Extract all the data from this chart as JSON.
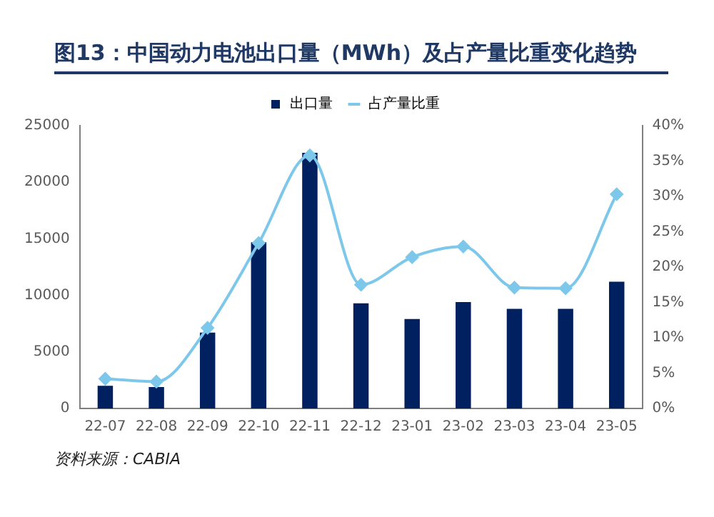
{
  "chart_data": {
    "type": "bar",
    "title": "图13：中国动力电池出口量（MWh）及占产量比重变化趋势",
    "categories": [
      "22-07",
      "22-08",
      "22-09",
      "22-10",
      "22-11",
      "22-12",
      "23-01",
      "23-02",
      "23-03",
      "23-04",
      "23-05"
    ],
    "series": [
      {
        "name": "出口量",
        "color": "#002060",
        "values": [
          2000,
          1900,
          6700,
          14700,
          22600,
          9300,
          7900,
          9400,
          8800,
          8800,
          11200
        ]
      },
      {
        "name": "占产量比重",
        "type": "line",
        "axis": "y2",
        "color": "#7dc8ea",
        "values": [
          4.2,
          3.8,
          11.4,
          23.4,
          35.8,
          17.5,
          21.4,
          22.9,
          17.1,
          17.0,
          30.3
        ]
      }
    ],
    "ylim": [
      0,
      25000
    ],
    "yticks": [
      0,
      5000,
      10000,
      15000,
      20000,
      25000
    ],
    "y2lim": [
      0,
      40
    ],
    "y2ticks": [
      {
        "value": 0,
        "label": "0%"
      },
      {
        "value": 5,
        "label": "5%"
      },
      {
        "value": 10,
        "label": "10%"
      },
      {
        "value": 15,
        "label": "15%"
      },
      {
        "value": 20,
        "label": "20%"
      },
      {
        "value": 25,
        "label": "25%"
      },
      {
        "value": 30,
        "label": "30%"
      },
      {
        "value": 35,
        "label": "35%"
      },
      {
        "value": 40,
        "label": "40%"
      }
    ],
    "grid": false,
    "legend": "top",
    "marker": "diamond",
    "annotations": [
      "资料来源：CABIA"
    ]
  }
}
